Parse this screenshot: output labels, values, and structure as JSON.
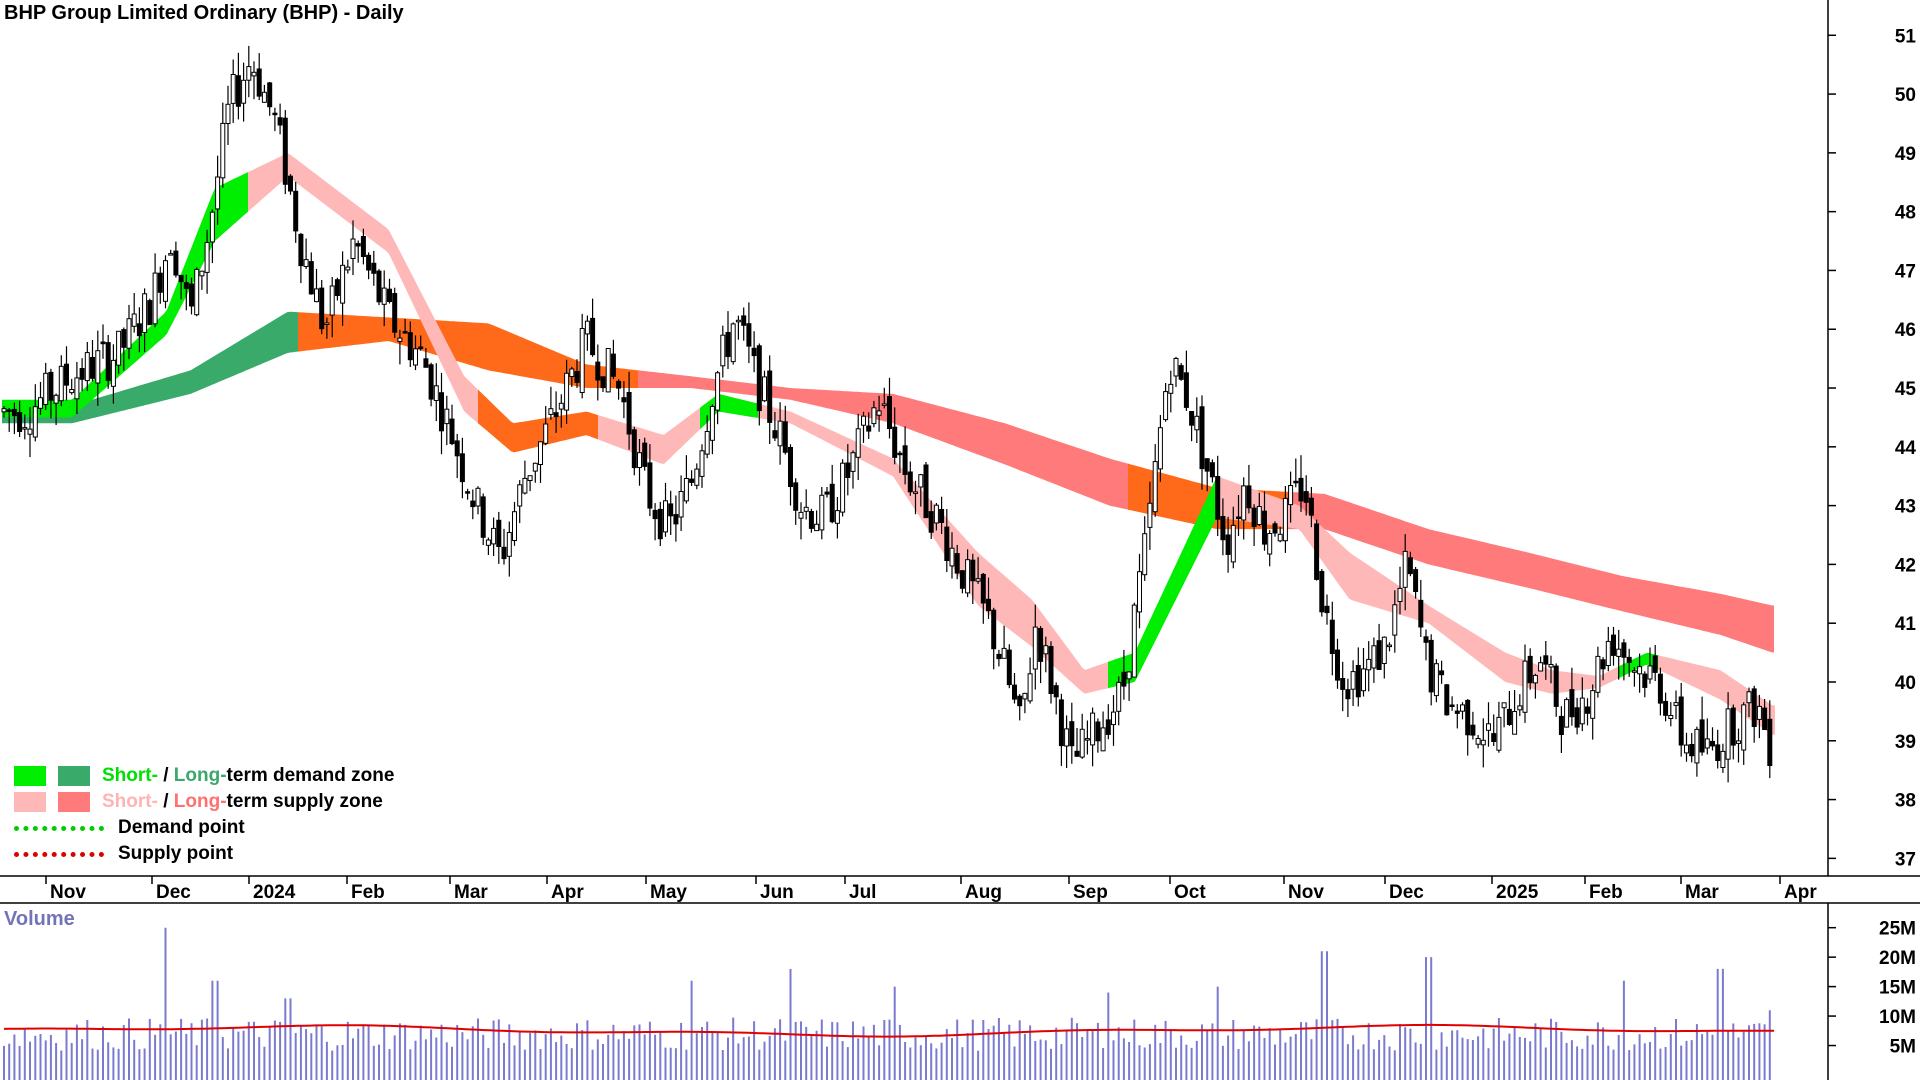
{
  "title": "BHP Group Limited Ordinary (BHP) - Daily",
  "volume_title": "Volume",
  "legend": {
    "demand_zone": {
      "short": "Short-",
      "sep": " / ",
      "long": "Long-",
      "rest": "term demand zone"
    },
    "supply_zone": {
      "short": "Short-",
      "sep": " / ",
      "long": "Long-",
      "rest": "term supply zone"
    },
    "demand_point": "Demand point",
    "supply_point": "Supply point"
  },
  "colors": {
    "short_demand": "#00ee00",
    "long_demand": "#3aaa6b",
    "short_supply": "#ffb8b8",
    "long_supply": "#ff7a7a",
    "transition": "#ff6a1a",
    "volume_bar": "#7a7ad0",
    "volume_ma": "#e00000",
    "demand_point": "#00cc00",
    "supply_point": "#dd0000"
  },
  "chart_data": {
    "type": "candlestick",
    "price_axis": {
      "ticks": [
        "51",
        "50",
        "49",
        "48",
        "47",
        "46",
        "45",
        "44",
        "43",
        "42",
        "41",
        "40",
        "39",
        "38",
        "37"
      ],
      "min": 36.7,
      "max": 51.6,
      "position": "right"
    },
    "volume_axis": {
      "ticks": [
        "25M",
        "20M",
        "15M",
        "10M",
        "5M"
      ]
    },
    "x_ticks": [
      "Nov",
      "Dec",
      "2024",
      "Feb",
      "Mar",
      "Apr",
      "May",
      "Jun",
      "Jul",
      "Aug",
      "Sep",
      "Oct",
      "Nov",
      "Dec",
      "2025",
      "Feb",
      "Mar",
      "Apr"
    ],
    "price_path": [
      [
        "Nov",
        44.6
      ],
      [
        "Nov",
        45.2
      ],
      [
        "Nov",
        45.6
      ],
      [
        "Dec",
        46.5
      ],
      [
        "Dec",
        47.6
      ],
      [
        "Dec",
        46.2
      ],
      [
        "Dec",
        47.8
      ],
      [
        "Dec",
        49.8
      ],
      [
        "2024",
        50.6
      ],
      [
        "2024",
        49.5
      ],
      [
        "2024",
        47.5
      ],
      [
        "2024",
        46.0
      ],
      [
        "Feb",
        47.5
      ],
      [
        "Feb",
        46.2
      ],
      [
        "Feb",
        45.5
      ],
      [
        "Mar",
        44.2
      ],
      [
        "Mar",
        43.0
      ],
      [
        "Mar",
        42.1
      ],
      [
        "Mar",
        43.5
      ],
      [
        "Apr",
        44.5
      ],
      [
        "Apr",
        45.8
      ],
      [
        "Apr",
        45.0
      ],
      [
        "May",
        43.2
      ],
      [
        "May",
        42.6
      ],
      [
        "May",
        43.4
      ],
      [
        "May",
        45.0
      ],
      [
        "May",
        46.2
      ],
      [
        "Jun",
        45.1
      ],
      [
        "Jun",
        44.2
      ],
      [
        "Jun",
        43.0
      ],
      [
        "Jun",
        42.8
      ],
      [
        "Jul",
        43.6
      ],
      [
        "Jul",
        44.8
      ],
      [
        "Jul",
        43.5
      ],
      [
        "Jul",
        42.8
      ],
      [
        "Aug",
        42.0
      ],
      [
        "Aug",
        41.5
      ],
      [
        "Aug",
        41.0
      ],
      [
        "Aug",
        40.2
      ],
      [
        "Aug",
        39.2
      ],
      [
        "Aug",
        41.0
      ],
      [
        "Aug",
        40.0
      ],
      [
        "Sep",
        38.6
      ],
      [
        "Sep",
        39.2
      ],
      [
        "Sep",
        39.8
      ],
      [
        "Sep",
        42.5
      ],
      [
        "Oct",
        45.5
      ],
      [
        "Oct",
        44.8
      ],
      [
        "Oct",
        43.6
      ],
      [
        "Oct",
        42.4
      ],
      [
        "Oct",
        43.4
      ],
      [
        "Oct",
        42.6
      ],
      [
        "Nov",
        42.8
      ],
      [
        "Nov",
        43.4
      ],
      [
        "Nov",
        41.2
      ],
      [
        "Nov",
        40.0
      ],
      [
        "Nov",
        40.2
      ],
      [
        "Dec",
        40.6
      ],
      [
        "Dec",
        42.0
      ],
      [
        "Dec",
        40.2
      ],
      [
        "Dec",
        39.6
      ],
      [
        "Dec",
        39.4
      ],
      [
        "2025",
        39.0
      ],
      [
        "2025",
        39.8
      ],
      [
        "2025",
        40.4
      ],
      [
        "2025",
        39.4
      ],
      [
        "Feb",
        39.8
      ],
      [
        "Feb",
        40.8
      ],
      [
        "Feb",
        40.3
      ],
      [
        "Feb",
        40.0
      ],
      [
        "Mar",
        39.0
      ],
      [
        "Mar",
        38.8
      ],
      [
        "Mar",
        39.3
      ],
      [
        "Mar",
        39.6
      ],
      [
        "Apr",
        38.9
      ],
      [
        "Apr",
        38.4
      ],
      [
        "Apr",
        37.2
      ]
    ],
    "short_term_band": [
      [
        "Nov",
        44.5,
        44.8
      ],
      [
        "Dec",
        45.9,
        46.3
      ],
      [
        "Dec",
        47.5,
        48.4
      ],
      [
        "2024",
        48.6,
        49.0
      ],
      [
        "Feb",
        47.3,
        47.7
      ],
      [
        "Mar",
        44.6,
        45.2
      ],
      [
        "Mar",
        43.9,
        44.4
      ],
      [
        "Apr",
        44.2,
        44.6
      ],
      [
        "May",
        43.7,
        44.2
      ],
      [
        "May",
        44.6,
        44.9
      ],
      [
        "Jun",
        44.4,
        44.6
      ],
      [
        "Jul",
        43.5,
        43.8
      ],
      [
        "Aug",
        41.3,
        42.2
      ],
      [
        "Aug",
        40.6,
        41.4
      ],
      [
        "Sep",
        39.8,
        40.2
      ],
      [
        "Sep",
        40.0,
        40.5
      ],
      [
        "Oct",
        42.8,
        43.5
      ],
      [
        "Nov",
        42.6,
        43.0
      ],
      [
        "Nov",
        41.4,
        42.2
      ],
      [
        "Dec",
        41.0,
        41.3
      ],
      [
        "2025",
        40.0,
        40.5
      ],
      [
        "2025",
        39.8,
        40.2
      ],
      [
        "Feb",
        39.9,
        40.1
      ],
      [
        "Feb",
        40.3,
        40.5
      ],
      [
        "Mar",
        39.7,
        40.2
      ],
      [
        "Apr",
        39.1,
        39.6
      ]
    ],
    "long_term_band": [
      [
        "Nov",
        44.4,
        44.7
      ],
      [
        "Dec",
        44.9,
        45.3
      ],
      [
        "2024",
        45.6,
        46.3
      ],
      [
        "Feb",
        45.8,
        46.2
      ],
      [
        "Mar",
        45.3,
        46.1
      ],
      [
        "Apr",
        45.0,
        45.4
      ],
      [
        "May",
        45.0,
        45.2
      ],
      [
        "Jun",
        44.8,
        45.0
      ],
      [
        "Jul",
        44.4,
        44.9
      ],
      [
        "Aug",
        43.7,
        44.4
      ],
      [
        "Sep",
        43.0,
        43.8
      ],
      [
        "Oct",
        42.6,
        43.3
      ],
      [
        "Nov",
        42.6,
        43.2
      ],
      [
        "Dec",
        42.0,
        42.6
      ],
      [
        "2025",
        41.6,
        42.2
      ],
      [
        "Feb",
        41.2,
        41.8
      ],
      [
        "Mar",
        40.8,
        41.5
      ],
      [
        "Apr",
        40.5,
        41.3
      ]
    ],
    "volume_average_millions": 7.5,
    "volume_notable_spikes_millions": [
      [
        "Dec",
        25
      ],
      [
        "Dec",
        16
      ],
      [
        "2024",
        13
      ],
      [
        "May",
        16
      ],
      [
        "Jun",
        18
      ],
      [
        "Jul",
        15
      ],
      [
        "Sep",
        14
      ],
      [
        "Oct",
        15
      ],
      [
        "Nov",
        21
      ],
      [
        "Dec",
        20
      ],
      [
        "Feb",
        16
      ],
      [
        "Mar",
        18
      ],
      [
        "Apr",
        11
      ]
    ]
  }
}
